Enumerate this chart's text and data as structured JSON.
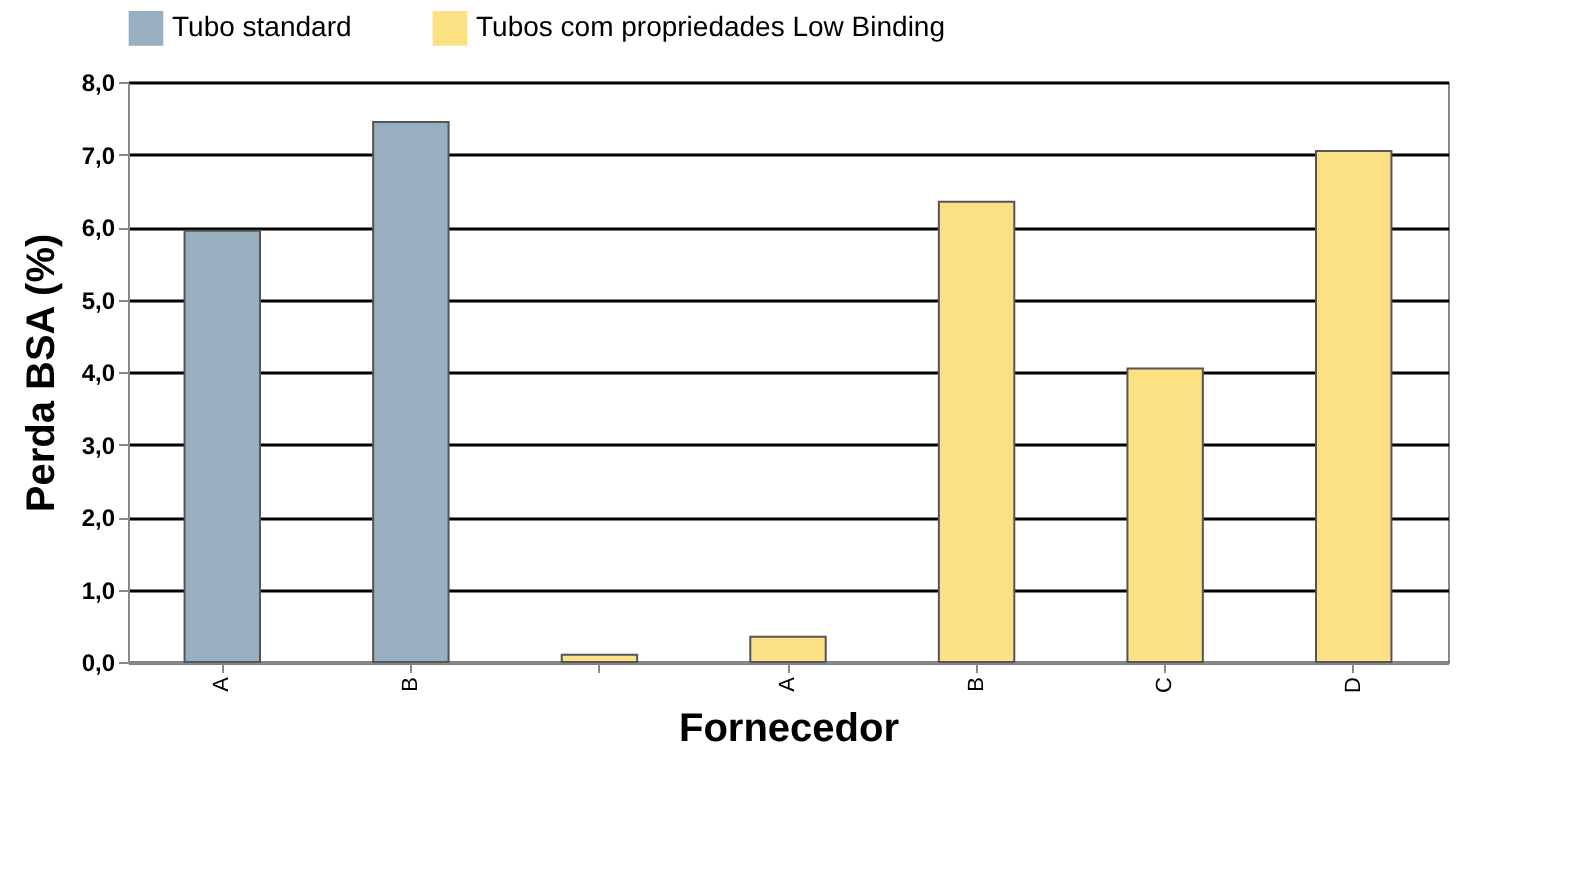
{
  "chart_data": {
    "type": "bar",
    "xlabel": "Fornecedor",
    "ylabel": "Perda BSA (%)",
    "categories": [
      "A",
      "B",
      null,
      "A",
      "B",
      "C",
      "D"
    ],
    "series": [
      {
        "name": "Tubo standard",
        "color": "#97afbe",
        "values": [
          5.95,
          7.45,
          null,
          null,
          null,
          null,
          null
        ]
      },
      {
        "name": "Tubos com propriedades Low Binding",
        "color": "#fbe183",
        "values": [
          null,
          null,
          0.1,
          0.35,
          6.35,
          4.05,
          7.05
        ]
      }
    ],
    "ylim": [
      0,
      8
    ],
    "yticks": [
      {
        "value": 0,
        "label": "0,0"
      },
      {
        "value": 1,
        "label": "1,0"
      },
      {
        "value": 2,
        "label": "2,0"
      },
      {
        "value": 3,
        "label": "3,0"
      },
      {
        "value": 4,
        "label": "4,0"
      },
      {
        "value": 5,
        "label": "5,0"
      },
      {
        "value": 6,
        "label": "6,0"
      },
      {
        "value": 7,
        "label": "7,0"
      },
      {
        "value": 8,
        "label": "8,0"
      }
    ],
    "grid": "y",
    "legend": "top"
  }
}
